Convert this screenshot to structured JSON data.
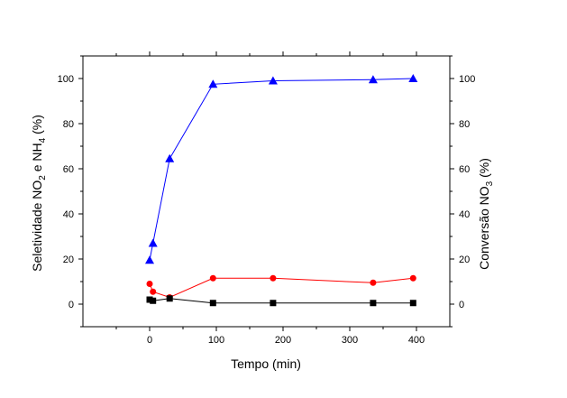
{
  "chart_data": {
    "type": "line",
    "title": "",
    "xlabel": "Tempo (min)",
    "ylabel_left": {
      "text": "Seletividade NO",
      "sub1": "2",
      "mid": " e NH",
      "sub2": "4",
      "tail": " (%)"
    },
    "ylabel_right": {
      "text": "Conversão NO",
      "sub1": "3",
      "tail": " (%)"
    },
    "xlim": [
      -100,
      450
    ],
    "ylim": [
      -10,
      110
    ],
    "x_ticks": [
      0,
      100,
      200,
      300,
      400
    ],
    "y_ticks": [
      0,
      20,
      40,
      60,
      80,
      100
    ],
    "grid": false,
    "legend": "none",
    "series": [
      {
        "color": "#0000ff",
        "marker": "triangle",
        "axis": "right",
        "x": [
          0,
          5,
          30,
          95,
          185,
          335,
          395
        ],
        "y": [
          19.5,
          27,
          64.5,
          97.5,
          99,
          99.5,
          100
        ]
      },
      {
        "color": "#ff0000",
        "marker": "circle",
        "axis": "left",
        "x": [
          0,
          5,
          30,
          95,
          185,
          335,
          395
        ],
        "y": [
          9,
          5.5,
          3,
          11.5,
          11.5,
          9.5,
          11.5
        ]
      },
      {
        "color": "#000000",
        "marker": "square",
        "axis": "left",
        "x": [
          0,
          5,
          30,
          95,
          185,
          335,
          395
        ],
        "y": [
          2,
          1.5,
          2.5,
          0.5,
          0.5,
          0.5,
          0.5
        ]
      }
    ]
  }
}
